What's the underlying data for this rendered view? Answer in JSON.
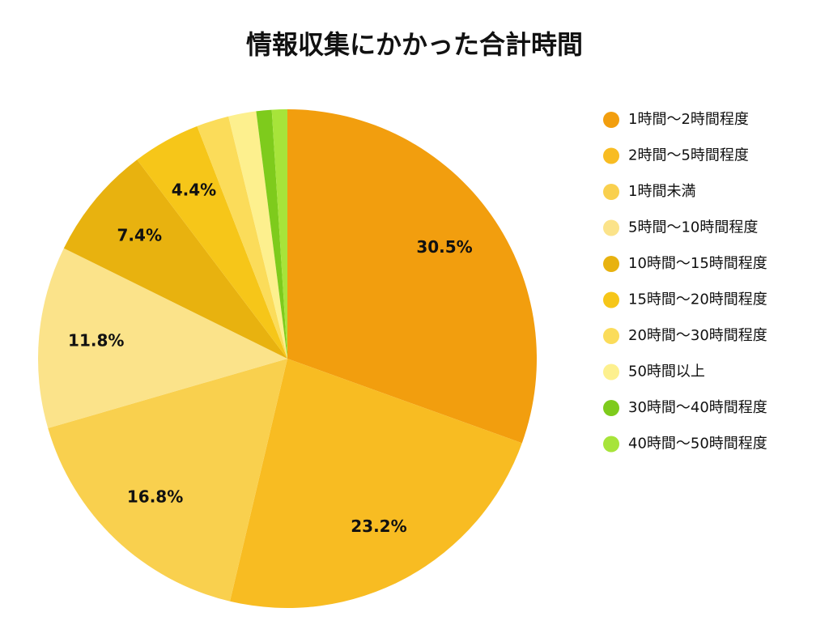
{
  "chart_data": {
    "type": "pie",
    "title": "情報収集にかかった合計時間",
    "categories": [
      "1時間〜2時間程度",
      "2時間〜5時間程度",
      "1時間未満",
      "5時間〜10時間程度",
      "10時間〜15時間程度",
      "15時間〜20時間程度",
      "20時間〜30時間程度",
      "50時間以上",
      "30時間〜40時間程度",
      "40時間〜50時間程度"
    ],
    "values": [
      30.5,
      23.2,
      16.8,
      11.8,
      7.4,
      4.4,
      2.1,
      1.8,
      1.0,
      1.0
    ],
    "value_labels": [
      "30.5%",
      "23.2%",
      "16.8%",
      "11.8%",
      "7.4%",
      "4.4%",
      null,
      null,
      null,
      null
    ],
    "colors": [
      "#f29e0e",
      "#f8bc22",
      "#f9d04e",
      "#fbe38a",
      "#e8b20f",
      "#f6c619",
      "#fbdc5a",
      "#fdf08e",
      "#7ecb1c",
      "#a7e43a"
    ],
    "legend": "right"
  }
}
